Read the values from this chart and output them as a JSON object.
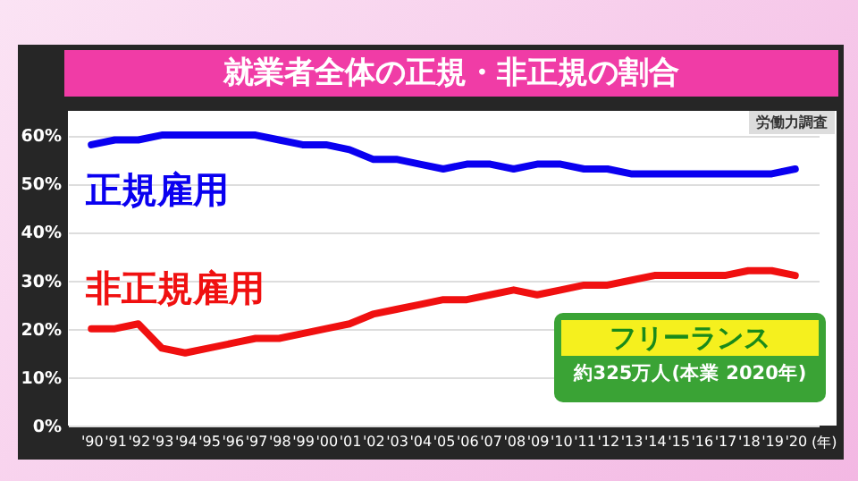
{
  "chart_data": {
    "type": "line",
    "title": "就業者全体の正規・非正規の割合",
    "xlabel": "(年)",
    "categories": [
      "'90",
      "'91",
      "'92",
      "'93",
      "'94",
      "'95",
      "'96",
      "'97",
      "'98",
      "'99",
      "'00",
      "'01",
      "'02",
      "'03",
      "'04",
      "'05",
      "'06",
      "'07",
      "'08",
      "'09",
      "'10",
      "'11",
      "'12",
      "'13",
      "'14",
      "'15",
      "'16",
      "'17",
      "'18",
      "'19",
      "'20"
    ],
    "series": [
      {
        "name": "正規雇用",
        "color": "#0a00f0",
        "values": [
          58,
          59,
          59,
          60,
          60,
          60,
          60,
          60,
          59,
          58,
          58,
          57,
          55,
          55,
          54,
          53,
          54,
          54,
          53,
          54,
          54,
          53,
          53,
          52,
          52,
          52,
          52,
          52,
          52,
          52,
          53
        ]
      },
      {
        "name": "非正規雇用",
        "color": "#f01010",
        "values": [
          20,
          20,
          21,
          16,
          15,
          16,
          17,
          18,
          18,
          19,
          20,
          21,
          23,
          24,
          25,
          26,
          26,
          27,
          28,
          27,
          28,
          29,
          29,
          30,
          31,
          31,
          31,
          31,
          32,
          32,
          31
        ]
      }
    ],
    "ylim": [
      0,
      65
    ],
    "yticks": [
      {
        "value": 0,
        "label": "0%"
      },
      {
        "value": 10,
        "label": "10%"
      },
      {
        "value": 20,
        "label": "20%"
      },
      {
        "value": 30,
        "label": "30%"
      },
      {
        "value": 40,
        "label": "40%"
      },
      {
        "value": 50,
        "label": "50%"
      },
      {
        "value": 60,
        "label": "60%"
      }
    ],
    "grid": "y",
    "marker": "none",
    "line_style": "solid",
    "annotations": [
      "労働力調査",
      "フリーランス",
      "約325万人(本業 2020年)"
    ]
  }
}
